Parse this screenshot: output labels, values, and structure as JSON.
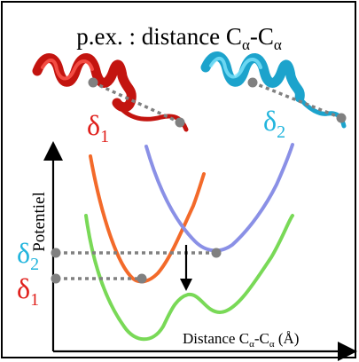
{
  "title": {
    "prefix": "p.ex. : distance C",
    "sub1": "α",
    "dash": "-C",
    "sub2": "α"
  },
  "proteins": [
    {
      "label": "δ",
      "sub": "1",
      "color": "#e0201c"
    },
    {
      "label": "δ",
      "sub": "2",
      "color": "#22b5dd"
    }
  ],
  "axes": {
    "ylabel": "Potentiel",
    "xlabel_prefix": "Distance C",
    "xlabel_sub1": "α",
    "xlabel_mid": "-C",
    "xlabel_sub2": "α",
    "xlabel_unit": " (Å)"
  },
  "marks": [
    {
      "label": "δ",
      "sub": "2",
      "color": "#22b5dd"
    },
    {
      "label": "δ",
      "sub": "1",
      "color": "#e0201c"
    }
  ],
  "curves": [
    {
      "name": "orange",
      "color": "#f36a2a"
    },
    {
      "name": "blue",
      "color": "#8a90e6"
    },
    {
      "name": "green",
      "color": "#79d957"
    }
  ]
}
